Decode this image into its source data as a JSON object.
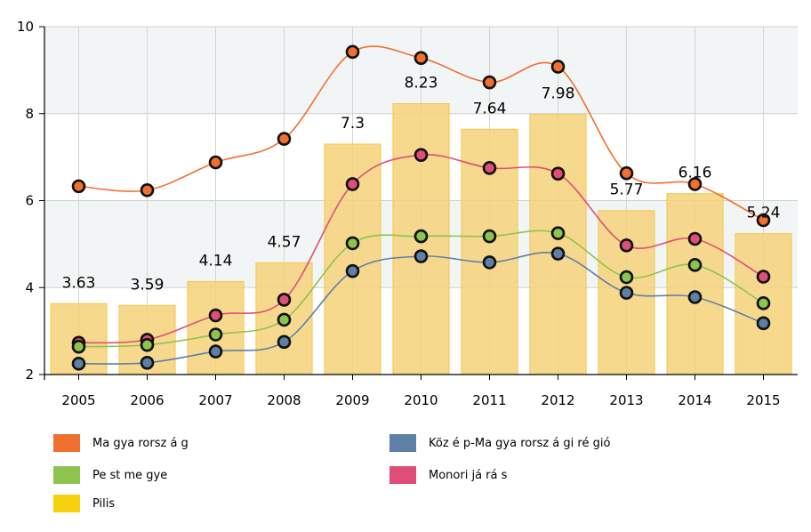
{
  "chart_data": {
    "type": "bar",
    "categories": [
      "2005",
      "2006",
      "2007",
      "2008",
      "2009",
      "2010",
      "2011",
      "2012",
      "2013",
      "2014",
      "2015"
    ],
    "ylim": [
      2,
      10
    ],
    "yticks": [
      2,
      4,
      6,
      8,
      10
    ],
    "grid": true,
    "bar_series": {
      "name": "Pilis",
      "color": "#f6d27a",
      "values": [
        3.63,
        3.59,
        4.14,
        4.57,
        7.3,
        8.23,
        7.64,
        7.98,
        5.77,
        6.16,
        5.24
      ],
      "labels": [
        "3.63",
        "3.59",
        "4.14",
        "4.57",
        "7.3",
        "8.23",
        "7.64",
        "7.98",
        "5.77",
        "6.16",
        "5.24"
      ]
    },
    "series": [
      {
        "name": "Magyarország",
        "color": "#f07030",
        "values": [
          6.33,
          6.24,
          6.88,
          7.42,
          9.42,
          9.28,
          8.72,
          9.08,
          6.63,
          6.38,
          5.55
        ]
      },
      {
        "name": "Monori járás",
        "color": "#de4e78",
        "values": [
          2.73,
          2.8,
          3.36,
          3.72,
          6.38,
          7.05,
          6.75,
          6.62,
          4.97,
          5.12,
          4.25
        ]
      },
      {
        "name": "Pest megye",
        "color": "#8dc44e",
        "values": [
          2.64,
          2.68,
          2.92,
          3.26,
          5.02,
          5.18,
          5.18,
          5.25,
          4.24,
          4.52,
          3.64
        ]
      },
      {
        "name": "Közép-Magyarországi régió",
        "color": "#5e7fa6",
        "values": [
          2.25,
          2.27,
          2.53,
          2.75,
          4.38,
          4.72,
          4.58,
          4.78,
          3.88,
          3.78,
          3.18
        ]
      }
    ],
    "legend": {
      "placement": "bottom",
      "items": [
        {
          "label": "Ma gya rorsz á g",
          "color": "#f07030"
        },
        {
          "label": "Köz é p-Ma gya rorsz á gi ré gió",
          "color": "#5e7fa6"
        },
        {
          "label": "Pe st me gye",
          "color": "#8dc44e"
        },
        {
          "label": "Monori já rá s",
          "color": "#de4e78"
        },
        {
          "label": "Pilis",
          "color": "#f6d20e"
        }
      ]
    }
  }
}
